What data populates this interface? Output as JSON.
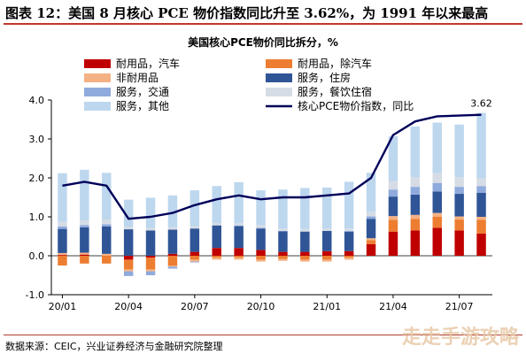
{
  "figure_title": "图表 12：美国 8 月核心 PCE 物价指数同比升至 3.62%，为 1991 年以来最高",
  "source": "数据来源：CEIC，兴业证券经济与金融研究院整理",
  "watermark": "走走手游攻略",
  "colors": {
    "durable_auto": "#c00000",
    "durable_ex_auto": "#ed7d31",
    "nondurable": "#f4b183",
    "housing": "#2f5597",
    "transport": "#8faadc",
    "food_lodging": "#d6dce5",
    "other_services": "#bdd7ee",
    "core_pce": "#00005a",
    "frame_rule": "#c0392b"
  },
  "chart_data": {
    "type": "bar",
    "title": "美国核心PCE物价同比拆分，%",
    "xlabel": "",
    "ylabel": "",
    "ylim": [
      -1.0,
      4.0
    ],
    "yticks": [
      "-1.0",
      "0.0",
      "1.0",
      "2.0",
      "3.0",
      "4.0"
    ],
    "x_tick_labels": [
      "20/01",
      "20/04",
      "20/07",
      "20/10",
      "21/01",
      "21/04",
      "21/07"
    ],
    "categories": [
      "20/01",
      "20/02",
      "20/03",
      "20/04",
      "20/05",
      "20/06",
      "20/07",
      "20/08",
      "20/09",
      "20/10",
      "20/11",
      "20/12",
      "21/01",
      "21/02",
      "21/03",
      "21/04",
      "21/05",
      "21/06",
      "21/07",
      "21/08"
    ],
    "stacked": true,
    "series": [
      {
        "key": "durable_auto",
        "name": "耐用品，汽车",
        "values": [
          0.02,
          0.03,
          0.0,
          -0.1,
          -0.05,
          0.05,
          0.1,
          0.2,
          0.2,
          0.15,
          0.1,
          0.1,
          0.12,
          0.12,
          0.3,
          0.62,
          0.65,
          0.72,
          0.65,
          0.57
        ]
      },
      {
        "key": "durable_ex_auto",
        "name": "耐用品，除汽车",
        "values": [
          -0.25,
          -0.2,
          -0.2,
          -0.25,
          -0.3,
          -0.25,
          -0.1,
          -0.05,
          -0.05,
          -0.1,
          -0.08,
          -0.1,
          -0.1,
          -0.05,
          0.1,
          0.3,
          0.3,
          0.28,
          0.28,
          0.35
        ]
      },
      {
        "key": "nondurable",
        "name": "非耐用品",
        "values": [
          0.05,
          0.05,
          0.05,
          -0.05,
          -0.05,
          -0.03,
          -0.05,
          -0.05,
          -0.05,
          -0.05,
          -0.05,
          -0.05,
          -0.05,
          -0.05,
          0.05,
          0.1,
          0.1,
          0.1,
          0.08,
          0.08
        ]
      },
      {
        "key": "housing",
        "name": "服务，住房",
        "values": [
          0.62,
          0.65,
          0.7,
          0.68,
          0.65,
          0.62,
          0.6,
          0.58,
          0.56,
          0.55,
          0.53,
          0.52,
          0.52,
          0.5,
          0.5,
          0.5,
          0.52,
          0.55,
          0.58,
          0.62
        ]
      },
      {
        "key": "transport",
        "name": "服务，交通",
        "values": [
          0.06,
          0.06,
          0.06,
          -0.12,
          -0.1,
          -0.05,
          -0.02,
          0.0,
          0.02,
          0.02,
          0.01,
          0.01,
          0.0,
          0.02,
          0.06,
          0.18,
          0.2,
          0.22,
          0.18,
          0.17
        ]
      },
      {
        "key": "food_lodging",
        "name": "服务，餐饮住宿",
        "values": [
          0.12,
          0.12,
          0.12,
          0.06,
          0.06,
          0.06,
          0.06,
          0.06,
          0.06,
          0.06,
          0.06,
          0.06,
          0.06,
          0.06,
          0.12,
          0.22,
          0.25,
          0.25,
          0.25,
          0.2
        ]
      },
      {
        "key": "other_services",
        "name": "服务，其他",
        "values": [
          1.25,
          1.3,
          1.2,
          0.7,
          0.78,
          0.82,
          0.92,
          0.95,
          1.05,
          0.9,
          1.0,
          1.05,
          1.05,
          1.2,
          1.0,
          1.15,
          1.3,
          1.3,
          1.35,
          1.68
        ]
      }
    ],
    "line": {
      "key": "core_pce",
      "name": "核心PCE物价指数，同比",
      "values": [
        1.8,
        1.9,
        1.8,
        0.95,
        1.0,
        1.1,
        1.3,
        1.45,
        1.55,
        1.45,
        1.5,
        1.5,
        1.55,
        1.6,
        2.0,
        3.1,
        3.45,
        3.58,
        3.6,
        3.62
      ]
    },
    "annotations": [
      {
        "text": "3.62"
      }
    ],
    "legend_position": "top, two columns",
    "grid": false
  }
}
